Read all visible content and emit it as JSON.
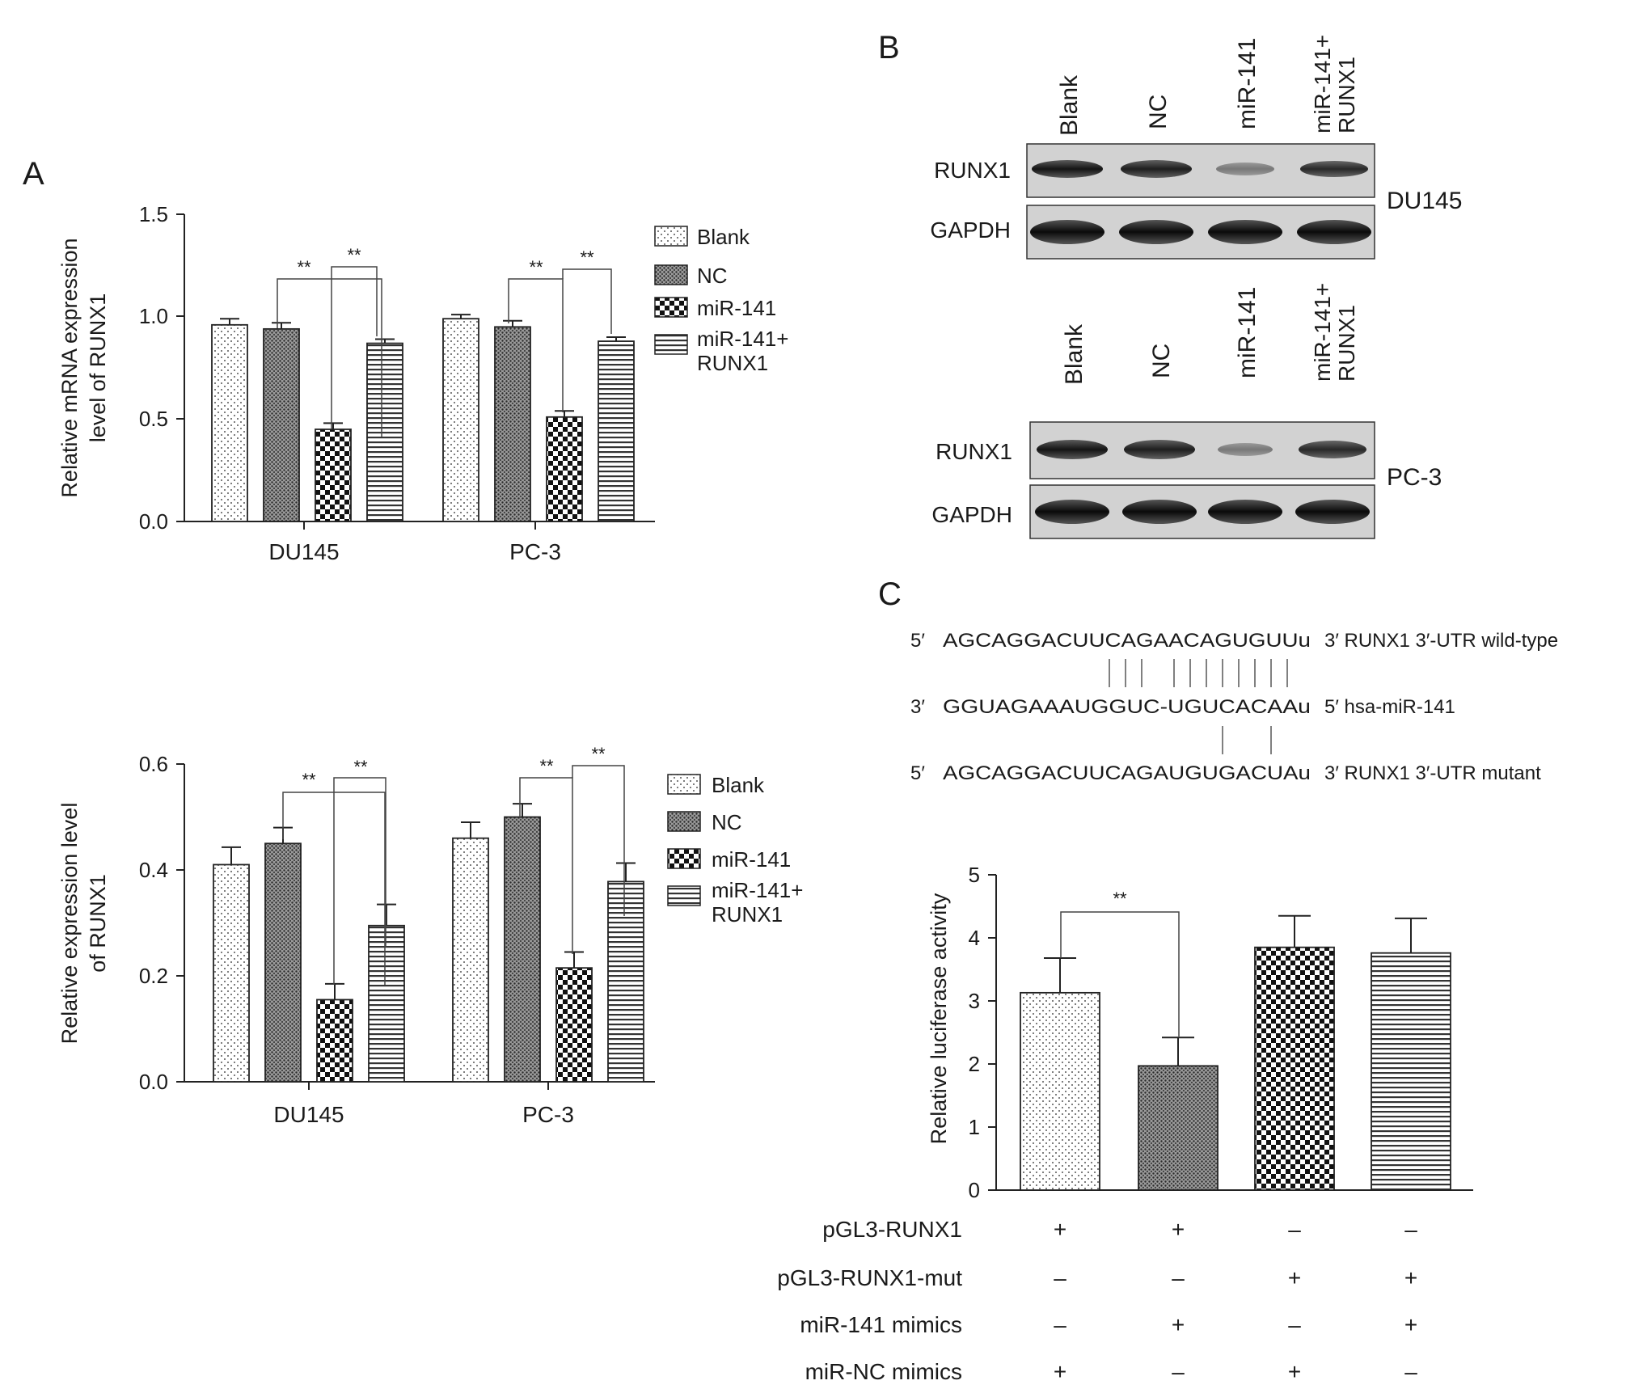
{
  "panels": {
    "A": "A",
    "B": "B",
    "C": "C"
  },
  "legend": {
    "blank": "Blank",
    "nc": "NC",
    "mir141": "miR-141",
    "mir141_runx1_l1": "miR-141+",
    "mir141_runx1_l2": "RUNX1"
  },
  "chart_data": [
    {
      "type": "bar",
      "panel": "A-top",
      "ylabel_line1": "Relative mRNA expression",
      "ylabel_line2": "level of RUNX1",
      "ylim": [
        0,
        1.5
      ],
      "yticks": [
        "0.0",
        "0.5",
        "1.0",
        "1.5"
      ],
      "categories": [
        "DU145",
        "PC-3"
      ],
      "series": [
        {
          "name": "Blank",
          "values": [
            0.96,
            0.99
          ],
          "errors": [
            0.03,
            0.02
          ]
        },
        {
          "name": "NC",
          "values": [
            0.94,
            0.95
          ],
          "errors": [
            0.03,
            0.03
          ]
        },
        {
          "name": "miR-141",
          "values": [
            0.45,
            0.51
          ],
          "errors": [
            0.03,
            0.03
          ]
        },
        {
          "name": "miR-141+RUNX1",
          "values": [
            0.87,
            0.88
          ],
          "errors": [
            0.02,
            0.02
          ]
        }
      ],
      "significance": "**"
    },
    {
      "type": "bar",
      "panel": "A-bottom",
      "ylabel_line1": "Relative expression level",
      "ylabel_line2": "of RUNX1",
      "ylim": [
        0,
        0.6
      ],
      "yticks": [
        "0.0",
        "0.2",
        "0.4",
        "0.6"
      ],
      "categories": [
        "DU145",
        "PC-3"
      ],
      "series": [
        {
          "name": "Blank",
          "values": [
            0.41,
            0.46
          ],
          "errors": [
            0.033,
            0.03
          ]
        },
        {
          "name": "NC",
          "values": [
            0.45,
            0.5
          ],
          "errors": [
            0.03,
            0.025
          ]
        },
        {
          "name": "miR-141",
          "values": [
            0.155,
            0.215
          ],
          "errors": [
            0.03,
            0.03
          ]
        },
        {
          "name": "miR-141+RUNX1",
          "values": [
            0.295,
            0.378
          ],
          "errors": [
            0.04,
            0.035
          ]
        }
      ],
      "significance": "**"
    },
    {
      "type": "bar",
      "panel": "C",
      "ylabel": "Relative luciferase activity",
      "ylim": [
        0,
        5
      ],
      "yticks": [
        "0",
        "1",
        "2",
        "3",
        "4",
        "5"
      ],
      "values": [
        3.13,
        1.97,
        3.85,
        3.76
      ],
      "errors": [
        0.55,
        0.45,
        0.5,
        0.55
      ],
      "significance": "**"
    }
  ],
  "blot": {
    "lanes": [
      "Blank",
      "NC",
      "miR-141"
    ],
    "lane4_l1": "miR-141+",
    "lane4_l2": "RUNX1",
    "row_runx1": "RUNX1",
    "row_gapdh": "GAPDH",
    "cell1": "DU145",
    "cell2": "PC-3"
  },
  "sequence": {
    "wt_prefix": "5′",
    "wt_seq": "AGCAGGACUUCAGAACAGUGUUu",
    "wt_suffix": "3′ RUNX1 3′-UTR  wild-type",
    "mir_prefix": "3′",
    "mir_seq": "GGUAGAAAUGGUC-UGUCACAAu",
    "mir_suffix": "5′ hsa-miR-141",
    "mut_prefix": "5′",
    "mut_seq": "AGCAGGACUUCAGAUGUGACUAu",
    "mut_suffix": "3′ RUNX1 3′-UTR mutant"
  },
  "conditions": {
    "rows": [
      {
        "label": "pGL3-RUNX1",
        "signs": [
          "+",
          "+",
          "–",
          "–"
        ]
      },
      {
        "label": "pGL3-RUNX1-mut",
        "signs": [
          "–",
          "–",
          "+",
          "+"
        ]
      },
      {
        "label": "miR-141 mimics",
        "signs": [
          "–",
          "+",
          "–",
          "+"
        ]
      },
      {
        "label": "miR-NC mimics",
        "signs": [
          "+",
          "–",
          "+",
          "–"
        ]
      }
    ]
  }
}
